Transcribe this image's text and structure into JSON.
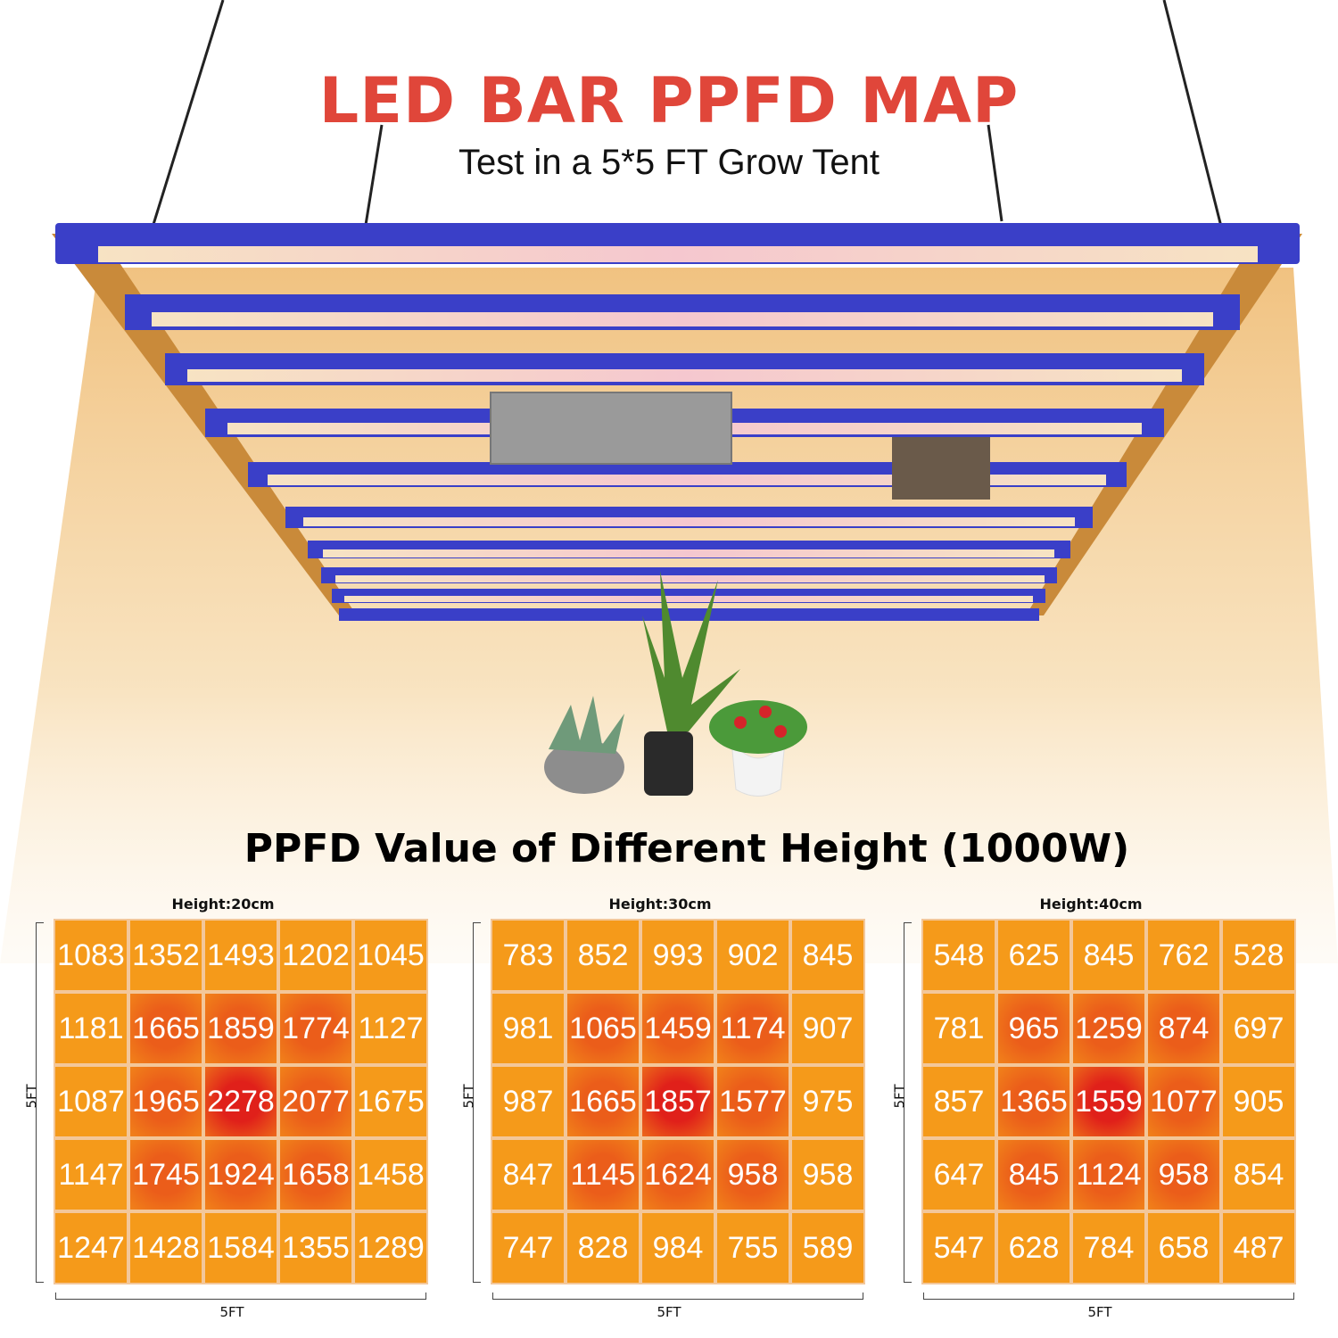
{
  "header": {
    "title": "LED BAR PPFD MAP",
    "subtitle": "Test in a 5*5 FT Grow Tent"
  },
  "section_title": "PPFD Value of Different Height (1000W)",
  "colors": {
    "title_red": "#e0463a",
    "light_beam": "#f2c07a",
    "bar_blue": "#3a3fc8",
    "frame_orange": "#e07a3a",
    "cell_hot": "#e0201a",
    "cell_cool": "#f59a1a"
  },
  "panels": [
    {
      "height_label": "Height:20cm",
      "side_label": "5FT",
      "bottom_label": "5FT",
      "rows": [
        [
          "1083",
          "1352",
          "1493",
          "1202",
          "1045"
        ],
        [
          "1181",
          "1665",
          "1859",
          "1774",
          "1127"
        ],
        [
          "1087",
          "1965",
          "2278",
          "2077",
          "1675"
        ],
        [
          "1147",
          "1745",
          "1924",
          "1658",
          "1458"
        ],
        [
          "1247",
          "1428",
          "1584",
          "1355",
          "1289"
        ]
      ]
    },
    {
      "height_label": "Height:30cm",
      "side_label": "5FT",
      "bottom_label": "5FT",
      "rows": [
        [
          "783",
          "852",
          "993",
          "902",
          "845"
        ],
        [
          "981",
          "1065",
          "1459",
          "1174",
          "907"
        ],
        [
          "987",
          "1665",
          "1857",
          "1577",
          "975"
        ],
        [
          "847",
          "1145",
          "1624",
          "958",
          "958"
        ],
        [
          "747",
          "828",
          "984",
          "755",
          "589"
        ]
      ]
    },
    {
      "height_label": "Height:40cm",
      "side_label": "5FT",
      "bottom_label": "5FT",
      "rows": [
        [
          "548",
          "625",
          "845",
          "762",
          "528"
        ],
        [
          "781",
          "965",
          "1259",
          "874",
          "697"
        ],
        [
          "857",
          "1365",
          "1559",
          "1077",
          "905"
        ],
        [
          "647",
          "845",
          "1124",
          "958",
          "854"
        ],
        [
          "547",
          "628",
          "784",
          "658",
          "487"
        ]
      ]
    }
  ]
}
